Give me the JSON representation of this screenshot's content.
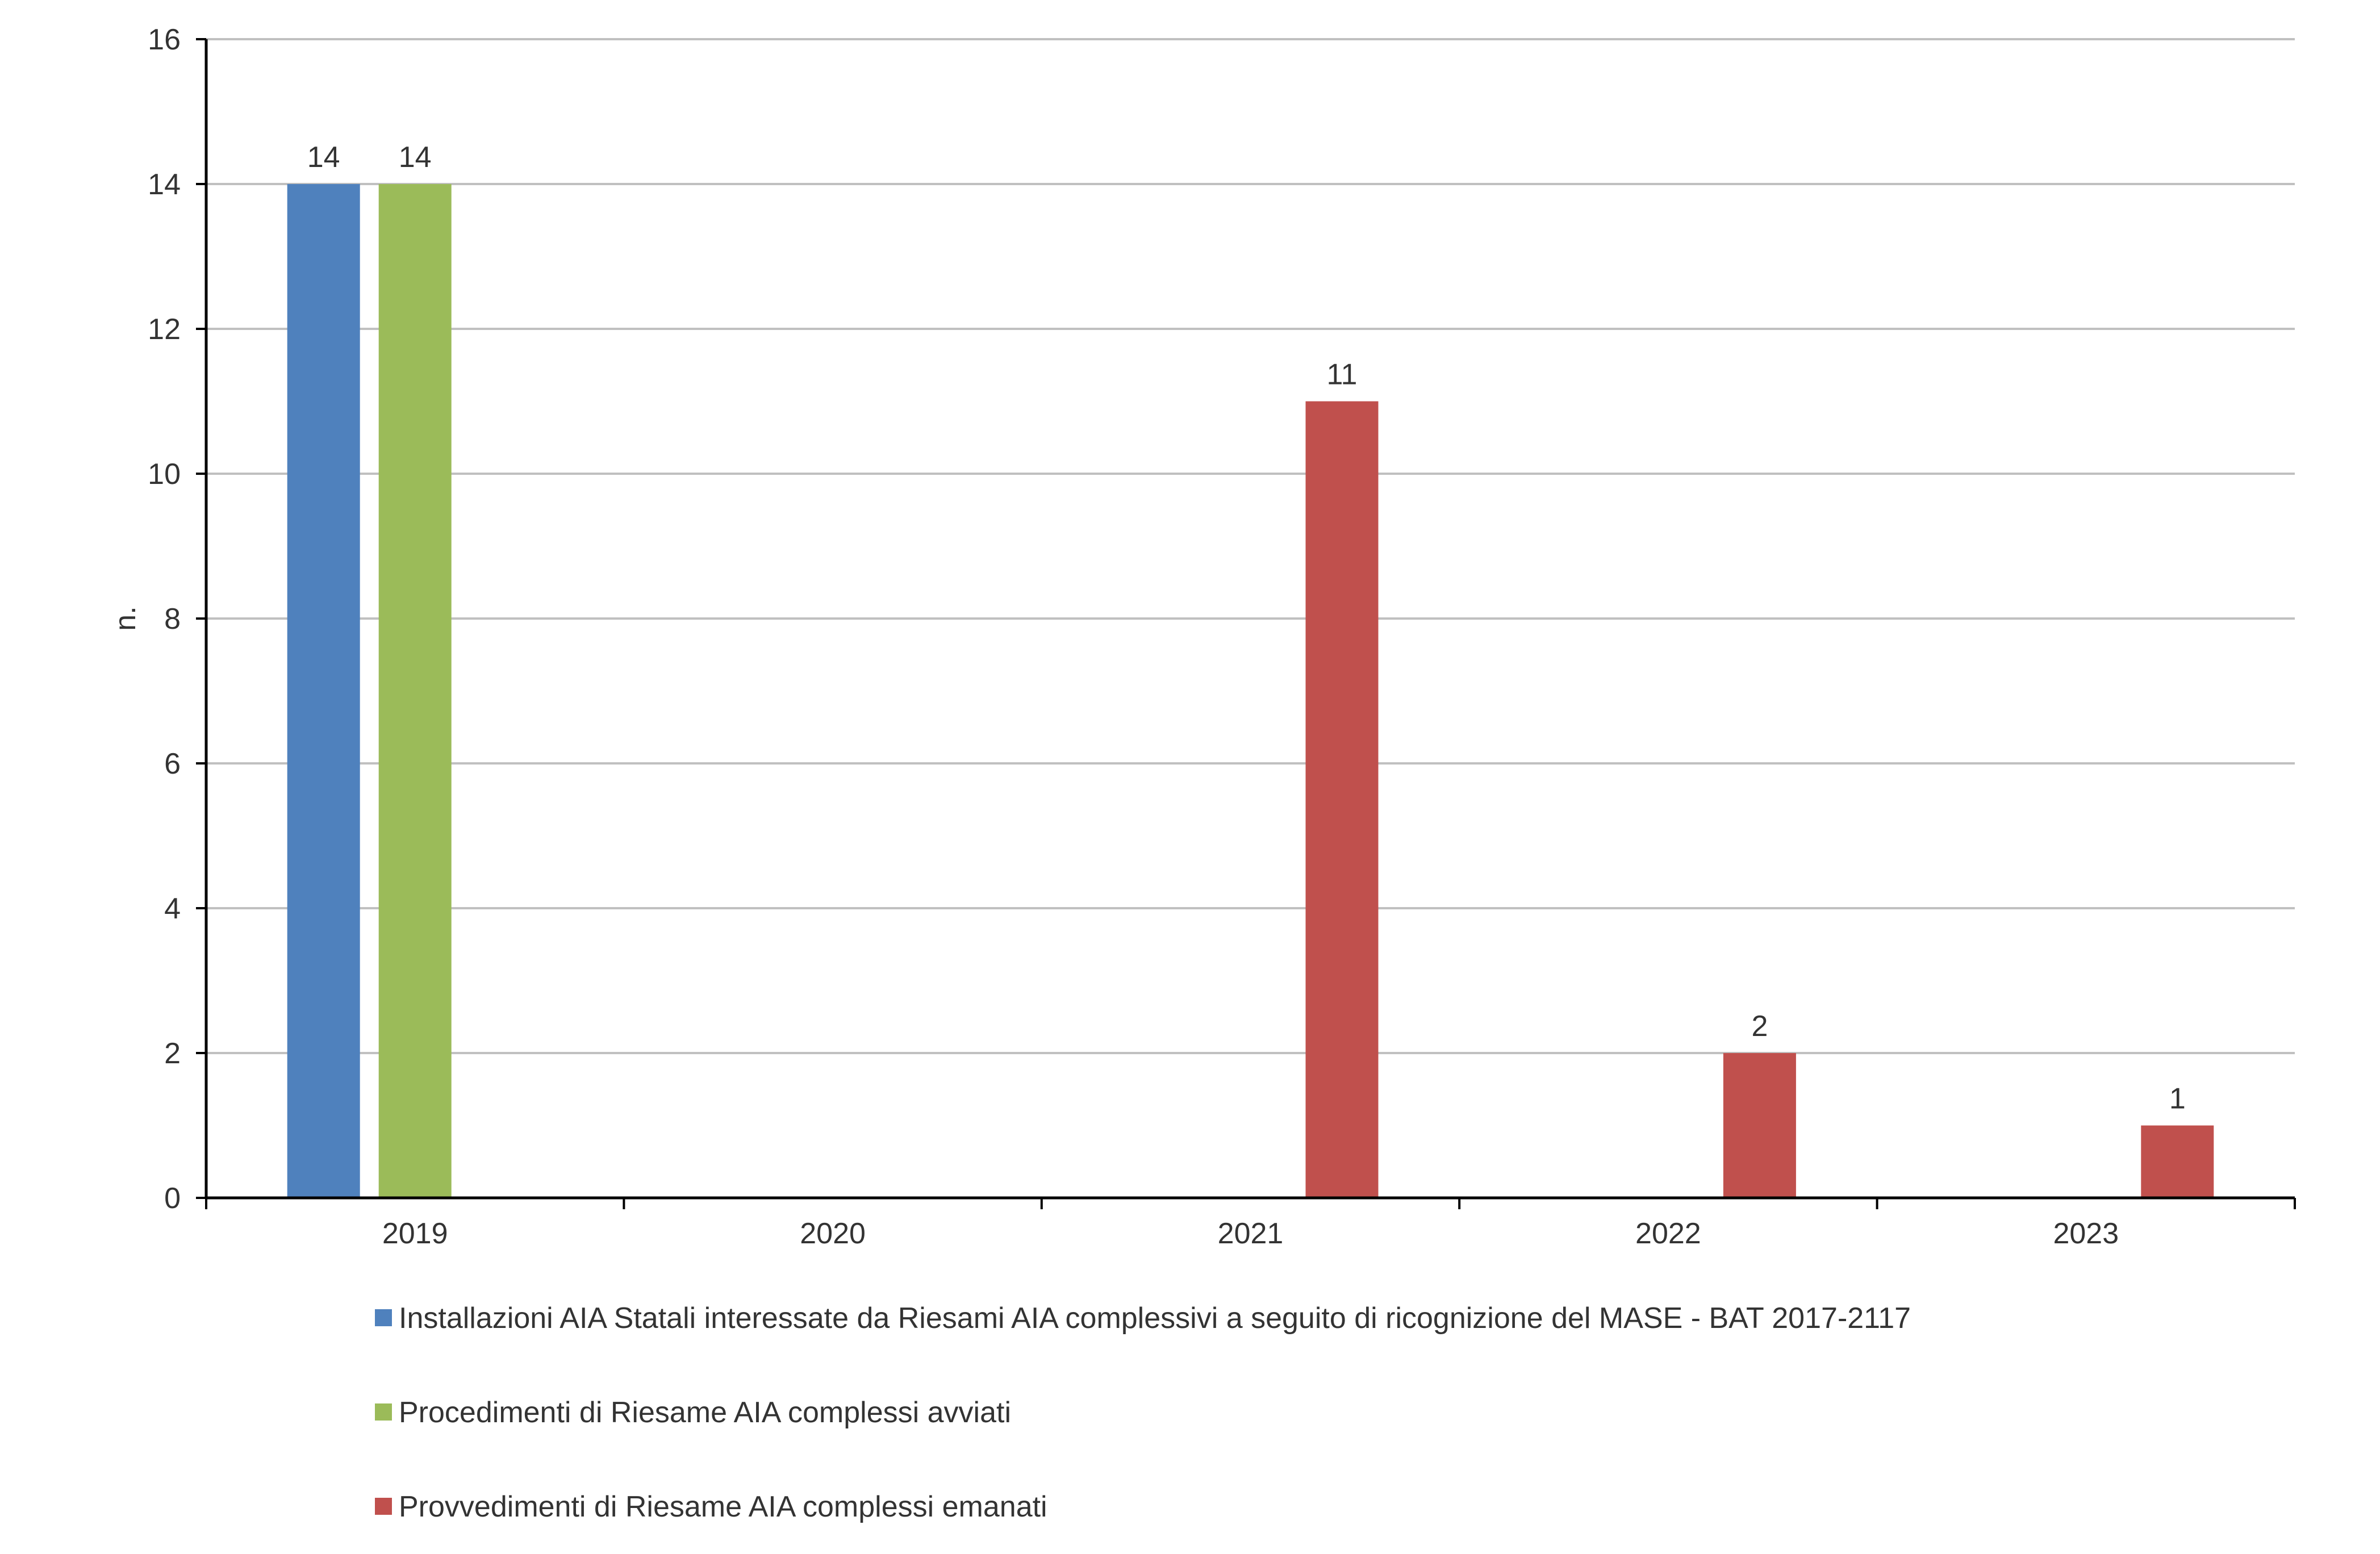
{
  "chart_data": {
    "type": "bar",
    "title": "",
    "xlabel": "",
    "ylabel": "n.",
    "ylim": [
      0,
      16
    ],
    "yticks": [
      0,
      2,
      4,
      6,
      8,
      10,
      12,
      14,
      16
    ],
    "grid": true,
    "legend_position": "bottom",
    "categories": [
      "2019",
      "2020",
      "2021",
      "2022",
      "2023"
    ],
    "series": [
      {
        "name": "Installazioni AIA Statali interessate da Riesami AIA complessivi a seguito di ricognizione del MASE - BAT 2017-2117",
        "color": "#4f81bd",
        "values": [
          14,
          null,
          null,
          null,
          null
        ]
      },
      {
        "name": "Procedimenti di Riesame AIA complessi avviati",
        "color": "#9bbb59",
        "values": [
          14,
          null,
          null,
          null,
          null
        ]
      },
      {
        "name": "Provvedimenti di Riesame AIA complessi emanati",
        "color": "#c0504d",
        "values": [
          null,
          null,
          11,
          2,
          1
        ]
      }
    ]
  }
}
